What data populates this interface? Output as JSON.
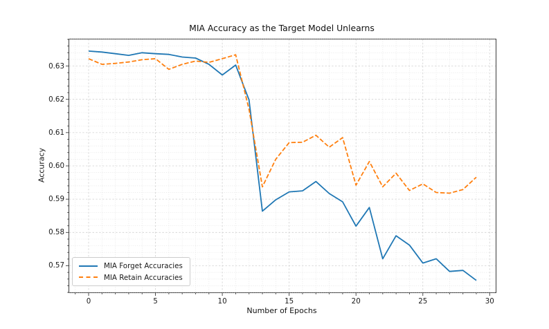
{
  "figure": {
    "background": "#ffffff"
  },
  "chart_data": {
    "type": "line",
    "title": "MIA Accuracy as the Target Model Unlearns",
    "xlabel": "Number of Epochs",
    "ylabel": "Accuracy",
    "x": [
      0,
      1,
      2,
      3,
      4,
      5,
      6,
      7,
      8,
      9,
      10,
      11,
      12,
      13,
      14,
      15,
      16,
      17,
      18,
      19,
      20,
      21,
      22,
      23,
      24,
      25,
      26,
      27,
      28,
      29
    ],
    "series": [
      {
        "name": "MIA Forget Accuracies",
        "color": "#1f77b4",
        "style": "solid",
        "values": [
          0.6345,
          0.6342,
          0.6337,
          0.6332,
          0.634,
          0.6337,
          0.6335,
          0.6327,
          0.6324,
          0.6305,
          0.6273,
          0.6303,
          0.6198,
          0.5864,
          0.5898,
          0.5922,
          0.5925,
          0.5953,
          0.5917,
          0.5892,
          0.5819,
          0.5875,
          0.5721,
          0.579,
          0.5762,
          0.5708,
          0.5721,
          0.5683,
          0.5686,
          0.5656
        ]
      },
      {
        "name": "MIA Retain Accuracies",
        "color": "#ff7f0e",
        "style": "dashed",
        "values": [
          0.6322,
          0.6305,
          0.6308,
          0.6312,
          0.6319,
          0.6322,
          0.629,
          0.6305,
          0.6315,
          0.6311,
          0.6322,
          0.6334,
          0.617,
          0.5937,
          0.602,
          0.607,
          0.6071,
          0.6092,
          0.6056,
          0.6085,
          0.5942,
          0.6013,
          0.5937,
          0.5978,
          0.5926,
          0.5946,
          0.592,
          0.5918,
          0.5929,
          0.5966
        ]
      }
    ],
    "xlim": [
      -1.45,
      30.45
    ],
    "ylim": [
      0.562,
      0.638
    ],
    "x_major_ticks": [
      0,
      5,
      10,
      15,
      20,
      25,
      30
    ],
    "y_major_tick_labels": [
      "0.57",
      "0.58",
      "0.59",
      "0.60",
      "0.61",
      "0.62",
      "0.63"
    ],
    "x_minor_step": 1,
    "y_minor_step": 0.002,
    "grid": true,
    "legend_position": "lower left",
    "grid_color_major": "#cfcfcf",
    "grid_color_minor": "#e2e2e2",
    "spine_color": "#3a3a3a"
  }
}
